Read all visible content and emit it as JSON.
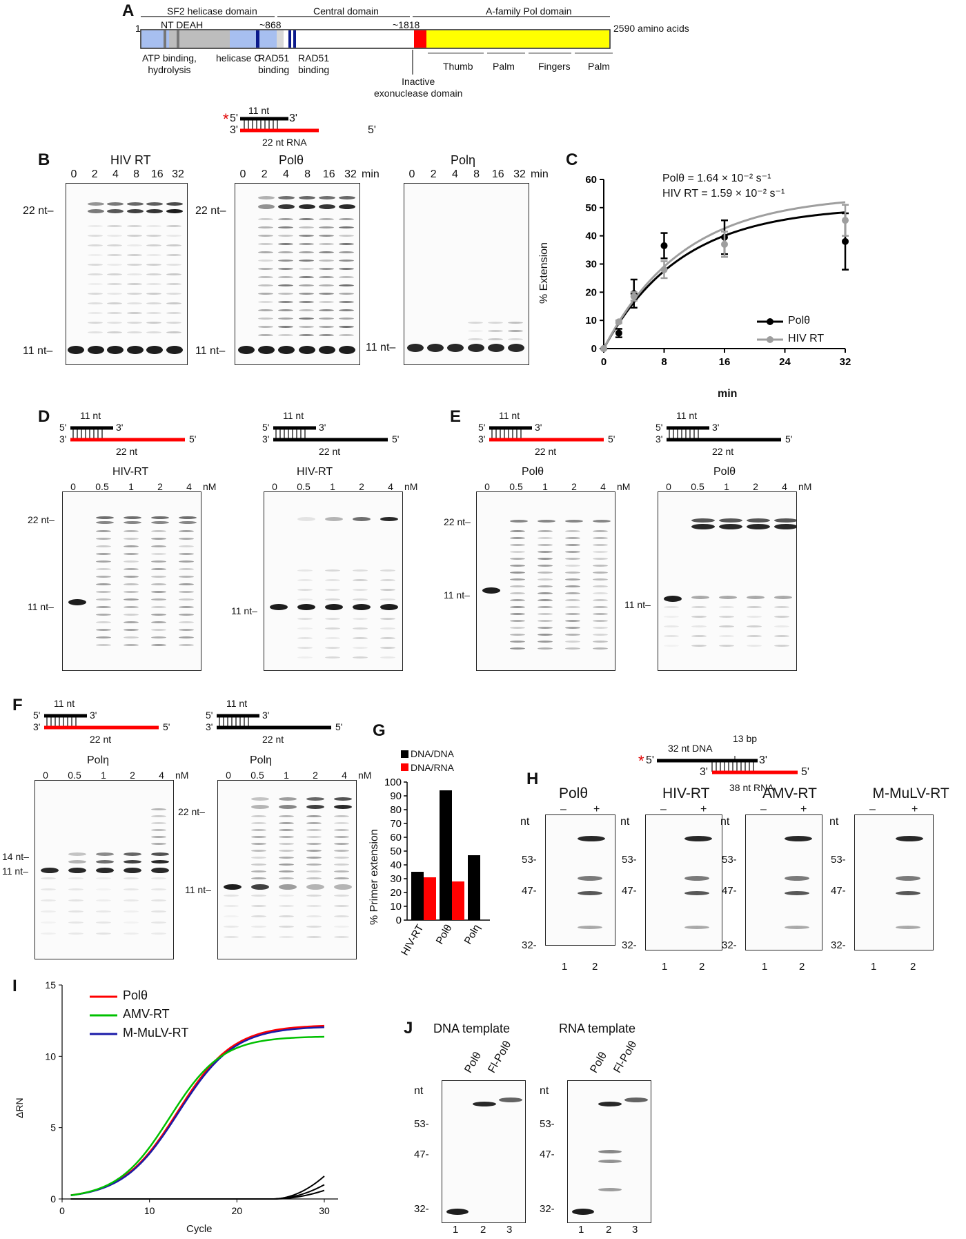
{
  "panelA": {
    "letter": "A",
    "start": "1",
    "end_label": "2590 amino acids",
    "domains": [
      "SF2 helicase domain",
      "Central domain",
      "A-family Pol domain"
    ],
    "motifs": "NT DEAH",
    "pos868": "~868",
    "pos1818": "~1818",
    "below_labels": {
      "atp": "ATP binding,\nhydrolysis",
      "helc": "helicase C",
      "rad51a": "RAD51\nbinding",
      "rad51b": "RAD51\nbinding",
      "exo": "Inactive\nexonuclease domain"
    },
    "subdomains": [
      "Thumb",
      "Palm",
      "Fingers",
      "Palm"
    ],
    "colors": {
      "lightblue": "#a7bff0",
      "gray": "#bdbdbd",
      "darkblue": "#0b1a8c",
      "red": "#ff0000",
      "yellow": "#ffff00"
    }
  },
  "substrate_top": {
    "star": "*",
    "p5": "5'",
    "p3": "3'",
    "primer": "11 nt",
    "t3": "3'",
    "t5": "5'",
    "template": "22 nt RNA"
  },
  "panelB": {
    "letter": "B",
    "gels": [
      {
        "title": "HIV RT",
        "times": [
          "0",
          "2",
          "4",
          "8",
          "16",
          "32"
        ],
        "unit": "min"
      },
      {
        "title": "Polθ",
        "times": [
          "0",
          "2",
          "4",
          "8",
          "16",
          "32"
        ],
        "unit": "min"
      },
      {
        "title": "Polη",
        "times": [
          "0",
          "2",
          "4",
          "8",
          "16",
          "32"
        ],
        "unit": "min"
      }
    ],
    "marker_top": "22 nt–",
    "marker_bottom": "11 nt–"
  },
  "panelC": {
    "letter": "C",
    "rate_pol": "Polθ = 1.64 × 10⁻² s⁻¹",
    "rate_hiv": "HIV RT = 1.59 × 10⁻² s⁻¹",
    "ylabel": "% Extension",
    "xlabel": "min",
    "legend": [
      "Polθ",
      "HIV RT"
    ]
  },
  "chart_data": {
    "type": "scatter",
    "x": [
      0,
      2,
      4,
      8,
      16,
      32
    ],
    "series": [
      {
        "name": "Polθ",
        "values": [
          0,
          5.5,
          19.5,
          36.5,
          39.5,
          38
        ],
        "err": [
          0,
          1.5,
          5,
          4.5,
          6,
          10
        ],
        "color": "#000000"
      },
      {
        "name": "HIV RT",
        "values": [
          0,
          9.5,
          18.5,
          28,
          37,
          45.5
        ],
        "err": [
          0,
          0.5,
          1.5,
          3,
          4.5,
          5.5
        ],
        "color": "#9e9e9e"
      }
    ],
    "fits": [
      {
        "name": "Polθ",
        "amplitude": 50.5,
        "rate": 0.0984,
        "color": "#000000"
      },
      {
        "name": "HIV RT",
        "amplitude": 54.5,
        "rate": 0.0954,
        "color": "#9e9e9e"
      }
    ],
    "xticks": [
      0,
      8,
      16,
      24,
      32
    ],
    "yticks": [
      0,
      10,
      20,
      30,
      40,
      50,
      60
    ],
    "xlim": [
      0,
      32
    ],
    "ylim": [
      0,
      60
    ],
    "xlabel": "min",
    "ylabel": "% Extension"
  },
  "panelD": {
    "letter": "D",
    "enzyme": "HIV-RT",
    "conc": [
      "0",
      "0.5",
      "1",
      "2",
      "4"
    ],
    "unit": "nM",
    "marker_top": "22 nt–",
    "marker_bottom": "11 nt–"
  },
  "panelE": {
    "letter": "E",
    "enzyme": "Polθ"
  },
  "panelF": {
    "letter": "F",
    "enzyme": "Polη",
    "marker_14": "14 nt–"
  },
  "hybrid_labels": {
    "p5": "5'",
    "p3": "3'",
    "primer": "11 nt",
    "t3": "3'",
    "t5": "5'",
    "template": "22 nt"
  },
  "panelG": {
    "letter": "G",
    "legend": [
      "DNA/DNA",
      "DNA/RNA"
    ],
    "ylabel": "% Primer extension",
    "categories": [
      "HIV-RT",
      "Polθ",
      "Polη"
    ],
    "dna_dna": [
      35,
      94,
      47
    ],
    "dna_rna": [
      31,
      28,
      null
    ],
    "yticks": [
      0,
      10,
      20,
      30,
      40,
      50,
      60,
      70,
      80,
      90,
      100
    ]
  },
  "panelH": {
    "letter": "H",
    "substrate": {
      "star": "*",
      "p5": "5'",
      "dna": "32 nt DNA",
      "bp": "13 bp",
      "p3": "3'",
      "r3": "3'",
      "r5": "5'",
      "rna": "38 nt RNA"
    },
    "gels": [
      "Polθ",
      "HIV-RT",
      "AMV-RT",
      "M-MuLV-RT"
    ],
    "minus": "–",
    "plus": "+",
    "nt": "nt",
    "markers": [
      "53-",
      "47-",
      "32-"
    ],
    "lanes": [
      "1",
      "2"
    ]
  },
  "panelI": {
    "letter": "I",
    "legend": [
      "Polθ",
      "AMV-RT",
      "M-MuLV-RT"
    ],
    "ylabel": "ΔRN",
    "xlabel": "Cycle",
    "xticks": [
      0,
      10,
      20,
      30
    ],
    "yticks": [
      0,
      5,
      10,
      15
    ],
    "colors": [
      "#ff0000",
      "#00c000",
      "#1a1aa8"
    ]
  },
  "panelJ": {
    "letter": "J",
    "titles": [
      "DNA template",
      "RNA template"
    ],
    "lanes_labels": [
      "Polθ",
      "Fl-Polθ"
    ],
    "nt": "nt",
    "markers": [
      "53-",
      "47-",
      "32-"
    ],
    "lanes": [
      "1",
      "2",
      "3"
    ]
  }
}
